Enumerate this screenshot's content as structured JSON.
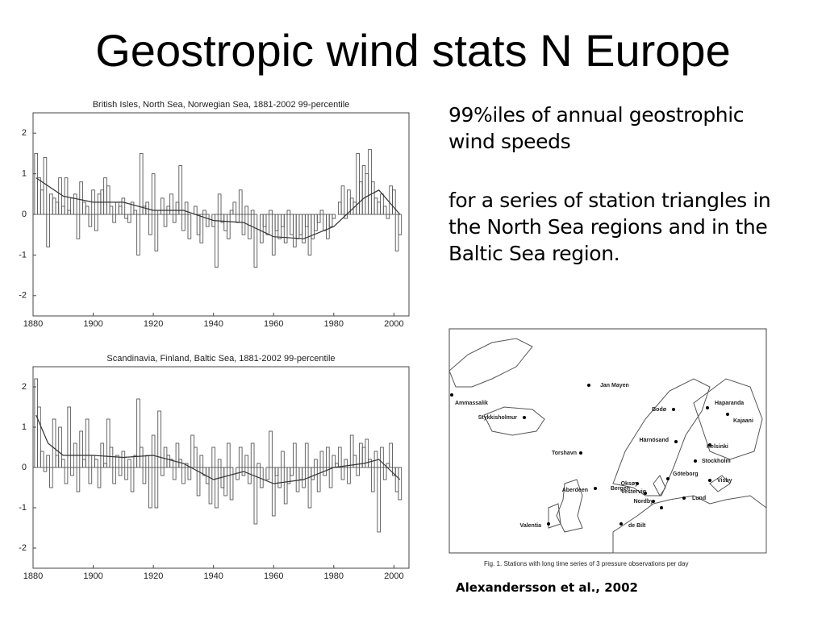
{
  "title": "Geostropic wind stats N Europe",
  "text": {
    "para1": "99%iles of annual geostrophic wind speeds",
    "para2": "for a series of station triangles in the North Sea regions and in the Baltic Sea region.",
    "citation": "Alexandersson et al., 2002"
  },
  "map": {
    "caption": "Fig. 1. Stations with long time series of 3 pressure observations per day",
    "stations": [
      "Jan Mayen",
      "Ammassalik",
      "Stykkisholmur",
      "Torshavn",
      "Bergen",
      "Aberdeen",
      "Valentia",
      "de Bilt",
      "Bodø",
      "Haparanda",
      "Kajaani",
      "Härnösand",
      "Helsinki",
      "Stockholm",
      "Göteborg",
      "Oksøy",
      "Vestervig",
      "Nordby",
      "Lund",
      "Visby"
    ]
  },
  "chart_data": [
    {
      "type": "bar",
      "title": "British Isles, North Sea, Norwegian Sea, 1881-2002  99-percentile",
      "x_start": 1881,
      "values": [
        1.5,
        0.9,
        0.6,
        1.4,
        -0.8,
        0.5,
        0.4,
        0.3,
        0.9,
        0.2,
        0.9,
        0.1,
        0.4,
        0.5,
        -0.6,
        0.8,
        0.3,
        0.2,
        -0.3,
        0.6,
        -0.4,
        0.5,
        0.6,
        0.9,
        0.7,
        0.2,
        -0.2,
        0.3,
        0.2,
        0.4,
        -0.1,
        -0.2,
        0.3,
        0.1,
        -1.0,
        1.5,
        0.2,
        0.3,
        -0.5,
        1.0,
        -0.9,
        0.1,
        0.4,
        -0.3,
        0.2,
        0.5,
        -0.2,
        0.3,
        1.2,
        -0.4,
        0.3,
        -0.6,
        0.0,
        0.2,
        -0.5,
        -0.7,
        0.1,
        -0.3,
        0.0,
        -0.3,
        -1.3,
        0.5,
        -0.2,
        -0.4,
        -0.6,
        0.1,
        0.3,
        -0.2,
        0.6,
        -0.5,
        0.2,
        -0.6,
        0.1,
        -1.3,
        0.0,
        -0.7,
        -0.3,
        -0.5,
        0.1,
        -1.0,
        -0.4,
        -0.6,
        -0.3,
        -0.7,
        0.1,
        -0.5,
        -0.8,
        -0.6,
        -0.5,
        -0.7,
        -0.3,
        -1.0,
        -0.6,
        -0.4,
        -0.2,
        0.1,
        -0.4,
        -0.6,
        -0.3,
        -0.1,
        0.0,
        0.3,
        0.7,
        -0.1,
        0.6,
        0.4,
        0.3,
        1.5,
        0.8,
        1.2,
        1.0,
        1.6,
        0.8,
        0.4,
        0.3,
        0.5,
        0.2,
        -0.1,
        0.7,
        0.6,
        -0.9,
        -0.5
      ],
      "smooth_x": [
        1881,
        1890,
        1900,
        1910,
        1920,
        1930,
        1940,
        1950,
        1960,
        1970,
        1980,
        1990,
        1995,
        2002
      ],
      "smooth_values": [
        0.9,
        0.45,
        0.3,
        0.3,
        0.1,
        0.1,
        -0.15,
        -0.2,
        -0.55,
        -0.6,
        -0.3,
        0.4,
        0.6,
        0.0
      ],
      "xlim": [
        1880,
        2005
      ],
      "xticks": [
        1880,
        1900,
        1920,
        1940,
        1960,
        1980,
        2000
      ],
      "ylim": [
        -2.5,
        2.5
      ],
      "yticks": [
        -2,
        -1,
        0,
        1,
        2
      ],
      "color": "#555555"
    },
    {
      "type": "bar",
      "title": "Scandinavia, Finland, Baltic Sea, 1881-2002  99-percentile",
      "x_start": 1881,
      "values": [
        2.2,
        1.5,
        0.4,
        -0.1,
        0.3,
        -0.5,
        1.2,
        0.3,
        1.0,
        0.2,
        -0.4,
        1.5,
        -0.2,
        0.6,
        -0.6,
        0.9,
        0.2,
        1.2,
        -0.4,
        0.3,
        0.2,
        -0.5,
        0.6,
        0.1,
        1.2,
        0.5,
        -0.4,
        0.3,
        -0.2,
        0.4,
        -0.3,
        0.2,
        -0.6,
        0.3,
        1.7,
        0.5,
        -0.4,
        0.3,
        -1.0,
        0.8,
        -1.0,
        1.4,
        -0.2,
        0.5,
        0.3,
        0.2,
        -0.3,
        0.6,
        0.2,
        -0.4,
        0.1,
        -0.3,
        0.8,
        0.5,
        -0.7,
        0.3,
        -0.2,
        -0.4,
        -0.9,
        0.5,
        -1.0,
        0.2,
        -0.5,
        -0.7,
        0.6,
        -0.8,
        0.0,
        -0.3,
        0.5,
        -0.2,
        0.3,
        -0.4,
        0.6,
        -1.4,
        0.1,
        -0.5,
        0.0,
        -0.3,
        0.9,
        -1.2,
        -0.2,
        -0.5,
        0.4,
        -0.9,
        -0.4,
        -0.2,
        0.6,
        -0.6,
        -0.3,
        -0.5,
        0.6,
        -1.0,
        -0.3,
        0.2,
        -0.6,
        0.4,
        -0.2,
        0.5,
        -0.5,
        0.3,
        0.1,
        0.5,
        -0.3,
        0.2,
        -0.4,
        0.8,
        0.3,
        -0.2,
        0.6,
        0.5,
        0.7,
        0.2,
        -0.6,
        0.4,
        -1.6,
        0.5,
        -0.3,
        0.1,
        0.6,
        -0.2,
        -0.6,
        -0.8
      ],
      "smooth_x": [
        1881,
        1885,
        1890,
        1900,
        1910,
        1920,
        1930,
        1940,
        1950,
        1960,
        1970,
        1980,
        1990,
        1995,
        2002
      ],
      "smooth_values": [
        1.3,
        0.6,
        0.3,
        0.3,
        0.25,
        0.3,
        0.1,
        -0.3,
        -0.1,
        -0.4,
        -0.3,
        0.0,
        0.1,
        0.2,
        -0.3
      ],
      "xlim": [
        1880,
        2005
      ],
      "xticks": [
        1880,
        1900,
        1920,
        1940,
        1960,
        1980,
        2000
      ],
      "ylim": [
        -2.5,
        2.5
      ],
      "yticks": [
        -2,
        -1,
        0,
        1,
        2
      ],
      "color": "#555555"
    }
  ]
}
